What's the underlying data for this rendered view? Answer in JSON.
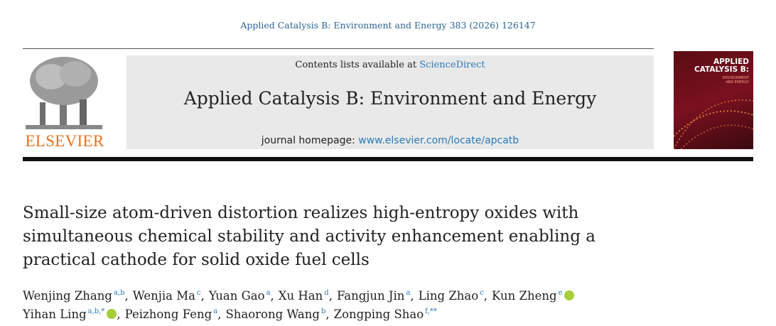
{
  "header": {
    "citation": "Applied Catalysis B: Environment and Energy 383 (2026) 126147"
  },
  "publisher_logo": "ELSEVIER",
  "masthead": {
    "contents_prefix": "Contents lists available at",
    "contents_link": "ScienceDirect",
    "journal_title": "Applied Catalysis B: Environment and Energy",
    "homepage_prefix": "journal homepage:",
    "homepage_link": "www.elsevier.com/locate/apcatb"
  },
  "cover": {
    "title_lines": [
      "APPLIED",
      "CATALYSIS B:"
    ],
    "subtitle_lines": [
      "ENVIRONMENT",
      "AND ENERGY"
    ]
  },
  "article": {
    "title_lines": [
      "Small-size atom-driven distortion realizes high-entropy oxides with",
      "simultaneous chemical stability and activity enhancement enabling a",
      "practical cathode for solid oxide fuel cells"
    ],
    "author_lines": [
      [
        {
          "name": "Wenjing Zhang",
          "sup": "a,b"
        },
        {
          "name": "Wenjia Ma",
          "sup": "c"
        },
        {
          "name": "Yuan Gao",
          "sup": "a"
        },
        {
          "name": "Xu Han",
          "sup": "d"
        },
        {
          "name": "Fangjun Jin",
          "sup": "a"
        },
        {
          "name": "Ling Zhao",
          "sup": "c"
        },
        {
          "name": "Kun Zheng",
          "sup": "e",
          "orcid": true
        }
      ],
      [
        {
          "name": "Yihan Ling",
          "sup": "a,b,*",
          "orcid": true
        },
        {
          "name": "Peizhong Feng",
          "sup": "a"
        },
        {
          "name": "Shaorong Wang",
          "sup": "b"
        },
        {
          "name": "Zongping Shao",
          "sup": "f,**"
        }
      ]
    ]
  }
}
